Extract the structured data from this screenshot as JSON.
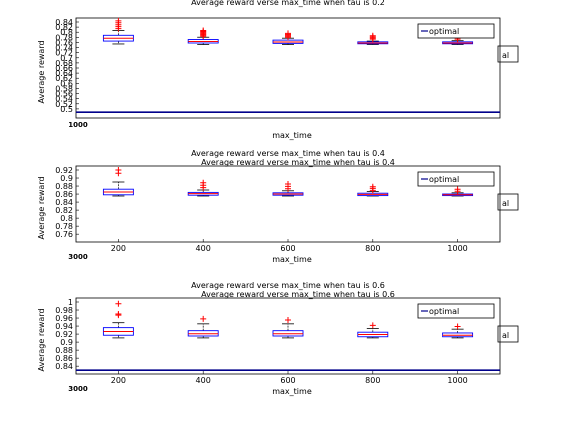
{
  "figure": {
    "background": "#ffffff",
    "axes_color": "#000000",
    "box_color": "#0000ff",
    "median_color": "#ff0000",
    "outlier_color": "#ff0000",
    "optimal_line_color": "#00008b"
  },
  "chart_data": [
    {
      "type": "box",
      "title": "Average reward verse max_time when tau is 0.2",
      "ghost_title": "",
      "xlabel": "max_time",
      "ylabel": "Average reward",
      "xlim": [
        100,
        1100
      ],
      "ylim": [
        0.37,
        0.89
      ],
      "x_tick_labels": [
        "1000"
      ],
      "y_tick_labels": [
        "0.84",
        "0.82",
        "0.8",
        "0.78",
        "0.76",
        "0.74",
        "0.72",
        "0.7",
        "0.68",
        "0.66",
        "0.64",
        "0.62",
        "0.6",
        "0.58",
        "0.56",
        "0.54",
        "0.52",
        "0.5"
      ],
      "legend": {
        "label": "optimal",
        "position": "top-right"
      },
      "optimal_value": 0.4,
      "boxes": [
        {
          "x": 200,
          "whisker_low": 0.755,
          "q1": 0.77,
          "median": 0.785,
          "q3": 0.8,
          "whisker_high": 0.825,
          "outliers": [
            0.835,
            0.845,
            0.855,
            0.865,
            0.875
          ]
        },
        {
          "x": 400,
          "whisker_low": 0.752,
          "q1": 0.76,
          "median": 0.768,
          "q3": 0.778,
          "whisker_high": 0.79,
          "outliers": [
            0.795,
            0.8,
            0.805,
            0.81,
            0.815,
            0.82,
            0.825
          ]
        },
        {
          "x": 600,
          "whisker_low": 0.752,
          "q1": 0.758,
          "median": 0.765,
          "q3": 0.775,
          "whisker_high": 0.785,
          "outliers": [
            0.79,
            0.795,
            0.8,
            0.805,
            0.81
          ]
        },
        {
          "x": 800,
          "whisker_low": 0.752,
          "q1": 0.756,
          "median": 0.76,
          "q3": 0.766,
          "whisker_high": 0.77,
          "outliers": [
            0.78,
            0.786,
            0.792,
            0.798
          ]
        },
        {
          "x": 1000,
          "whisker_low": 0.752,
          "q1": 0.756,
          "median": 0.76,
          "q3": 0.766,
          "whisker_high": 0.772,
          "outliers": [
            0.78,
            0.788,
            0.796
          ]
        }
      ]
    },
    {
      "type": "box",
      "title": "Average reward verse max_time when tau is 0.4",
      "ghost_title": "Average reward verse max_time when tau is 0.4",
      "xlabel": "max_time",
      "ylabel": "Average reward",
      "xlim": [
        100,
        1100
      ],
      "ylim": [
        0.74,
        0.93
      ],
      "x_tick_labels": [
        "200",
        "400",
        "600",
        "800",
        "1000"
      ],
      "y_tick_labels": [
        "0.92",
        "0.9",
        "0.88",
        "0.86",
        "0.84",
        "0.82",
        "0.8",
        "0.78",
        "0.76"
      ],
      "legend": {
        "label": "optimal",
        "position": "top-right"
      },
      "boxes": [
        {
          "x": 200,
          "whisker_low": 0.855,
          "q1": 0.858,
          "median": 0.865,
          "q3": 0.872,
          "whisker_high": 0.89,
          "outliers": [
            0.912,
            0.92
          ]
        },
        {
          "x": 400,
          "whisker_low": 0.855,
          "q1": 0.857,
          "median": 0.861,
          "q3": 0.864,
          "whisker_high": 0.87,
          "outliers": [
            0.876,
            0.882,
            0.888
          ]
        },
        {
          "x": 600,
          "whisker_low": 0.855,
          "q1": 0.857,
          "median": 0.86,
          "q3": 0.863,
          "whisker_high": 0.868,
          "outliers": [
            0.873,
            0.879,
            0.885
          ]
        },
        {
          "x": 800,
          "whisker_low": 0.855,
          "q1": 0.856,
          "median": 0.859,
          "q3": 0.862,
          "whisker_high": 0.866,
          "outliers": [
            0.869,
            0.874,
            0.878
          ]
        },
        {
          "x": 1000,
          "whisker_low": 0.855,
          "q1": 0.856,
          "median": 0.858,
          "q3": 0.86,
          "whisker_high": 0.863,
          "outliers": [
            0.867,
            0.872
          ]
        }
      ]
    },
    {
      "type": "box",
      "title": "Average reward verse max_time when tau is 0.6",
      "ghost_title": "Average reward verse max_time when tau is 0.6",
      "xlabel": "max_time",
      "ylabel": "Average reward",
      "xlim": [
        100,
        1100
      ],
      "ylim": [
        0.82,
        1.02
      ],
      "x_tick_labels": [
        "200",
        "400",
        "600",
        "800",
        "1000"
      ],
      "y_tick_labels": [
        "1",
        "0.98",
        "0.96",
        "0.94",
        "0.92",
        "0.9",
        "0.88",
        "0.86",
        "0.84"
      ],
      "legend": {
        "label": "optimal",
        "position": "top-right"
      },
      "optimal_value": 0.83,
      "boxes": [
        {
          "x": 200,
          "whisker_low": 0.915,
          "q1": 0.922,
          "median": 0.932,
          "q3": 0.942,
          "whisker_high": 0.955,
          "outliers": [
            0.975,
            0.978,
            1.005
          ]
        },
        {
          "x": 400,
          "whisker_low": 0.915,
          "q1": 0.92,
          "median": 0.926,
          "q3": 0.934,
          "whisker_high": 0.952,
          "outliers": [
            0.965
          ]
        },
        {
          "x": 600,
          "whisker_low": 0.915,
          "q1": 0.92,
          "median": 0.926,
          "q3": 0.934,
          "whisker_high": 0.952,
          "outliers": [
            0.962
          ]
        },
        {
          "x": 800,
          "whisker_low": 0.915,
          "q1": 0.918,
          "median": 0.924,
          "q3": 0.93,
          "whisker_high": 0.94,
          "outliers": [
            0.948
          ]
        },
        {
          "x": 1000,
          "whisker_low": 0.915,
          "q1": 0.918,
          "median": 0.922,
          "q3": 0.928,
          "whisker_high": 0.938,
          "outliers": [
            0.945
          ]
        }
      ]
    }
  ]
}
